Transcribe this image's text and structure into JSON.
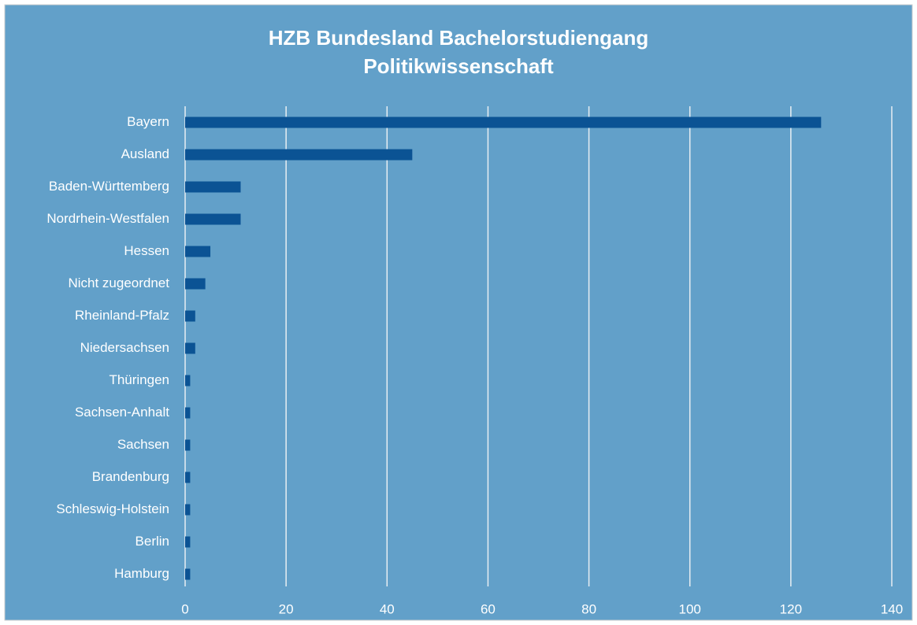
{
  "chart_data": {
    "type": "bar",
    "orientation": "horizontal",
    "title": "HZB Bundesland Bachelorstudiengang Politikwissenschaft",
    "categories": [
      "Bayern",
      "Ausland",
      "Baden-Württemberg",
      "Nordrhein-Westfalen",
      "Hessen",
      "Nicht zugeordnet",
      "Rheinland-Pfalz",
      "Niedersachsen",
      "Thüringen",
      "Sachsen-Anhalt",
      "Sachsen",
      "Brandenburg",
      "Schleswig-Holstein",
      "Berlin",
      "Hamburg"
    ],
    "values": [
      126,
      45,
      11,
      11,
      5,
      4,
      2,
      2,
      1,
      1,
      1,
      1,
      1,
      1,
      1
    ],
    "color": "#0b5394",
    "xlim": [
      0,
      140
    ],
    "xticks": [
      0,
      20,
      40,
      60,
      80,
      100,
      120,
      140
    ],
    "grid": true
  }
}
